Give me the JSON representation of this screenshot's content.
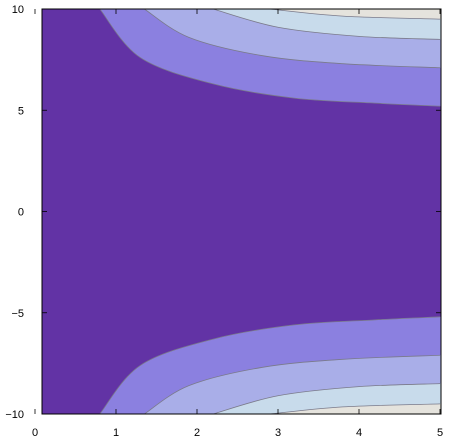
{
  "chart_data": {
    "type": "contour",
    "title": "",
    "xlabel": "",
    "ylabel": "",
    "xlim": [
      0,
      5
    ],
    "ylim": [
      -10,
      10
    ],
    "x_ticks": [
      0,
      1,
      2,
      3,
      4,
      5
    ],
    "y_ticks": [
      -10,
      -5,
      0,
      5,
      10
    ],
    "x_tick_labels": [
      "0",
      "1",
      "2",
      "3",
      "4",
      "5"
    ],
    "y_tick_labels": [
      "−10",
      "−5",
      "0",
      "5",
      "10"
    ],
    "grid": false,
    "legend": "none",
    "contour_levels": [
      {
        "level": 1,
        "color": "#6233a5"
      },
      {
        "level": 2,
        "color": "#8b80e0"
      },
      {
        "level": 3,
        "color": "#a9aee8"
      },
      {
        "level": 4,
        "color": "#c8dbeb"
      },
      {
        "level": 5,
        "color": "#e5e3dd"
      }
    ],
    "contour_lines": [
      {
        "level": 1,
        "points": [
          [
            0.8,
            10
          ],
          [
            1.3,
            7.6
          ],
          [
            2.2,
            6.3
          ],
          [
            3.2,
            5.6
          ],
          [
            4.2,
            5.35
          ],
          [
            5,
            5.2
          ]
        ]
      },
      {
        "level": 2,
        "points": [
          [
            1.35,
            10
          ],
          [
            1.9,
            8.6
          ],
          [
            2.8,
            7.7
          ],
          [
            3.8,
            7.3
          ],
          [
            5,
            7.1
          ]
        ]
      },
      {
        "level": 3,
        "points": [
          [
            2.2,
            10
          ],
          [
            3.0,
            9.1
          ],
          [
            4.0,
            8.65
          ],
          [
            5,
            8.5
          ]
        ]
      },
      {
        "level": 4,
        "points": [
          [
            2.9,
            10
          ],
          [
            3.8,
            9.65
          ],
          [
            5,
            9.5
          ]
        ]
      }
    ],
    "line_color": "#7a7a8a"
  }
}
